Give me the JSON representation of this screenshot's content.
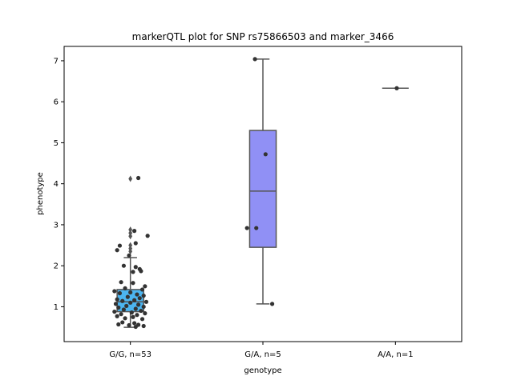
{
  "chart_data": {
    "type": "box",
    "title": "markerQTL plot for SNP rs75866503 and marker_3466",
    "xlabel": "genotype",
    "ylabel": "phenotype",
    "ylim": [
      0.15,
      7.35
    ],
    "yticks": [
      1,
      2,
      3,
      4,
      5,
      6,
      7
    ],
    "grid": false,
    "categories": [
      "G/G, n=53",
      "G/A, n=5",
      "A/A, n=1"
    ],
    "colors": [
      "#4cb5f0",
      "#9090f5",
      "#f08080"
    ],
    "box_edge_color": "#555555",
    "point_color": "#333333",
    "boxes": [
      {
        "category": "G/G, n=53",
        "q1": 0.88,
        "median": 1.12,
        "q3": 1.42,
        "whisker_low": 0.5,
        "whisker_high": 2.2,
        "fliers": [
          2.35,
          2.42,
          2.5,
          2.72,
          2.8,
          2.88,
          4.12
        ]
      },
      {
        "category": "G/A, n=5",
        "q1": 2.45,
        "median": 3.82,
        "q3": 5.3,
        "whisker_low": 1.07,
        "whisker_high": 7.04,
        "fliers": []
      },
      {
        "category": "A/A, n=1",
        "q1": 6.33,
        "median": 6.33,
        "q3": 6.33,
        "whisker_low": 6.33,
        "whisker_high": 6.33,
        "fliers": []
      }
    ],
    "points": [
      {
        "category": "G/G, n=53",
        "values": [
          [
            0.06,
            4.14
          ],
          [
            0.03,
            2.85
          ],
          [
            0.04,
            2.55
          ],
          [
            0.13,
            2.73
          ],
          [
            -0.08,
            2.49
          ],
          [
            -0.1,
            2.38
          ],
          [
            -0.01,
            2.25
          ],
          [
            -0.05,
            2.0
          ],
          [
            0.04,
            1.97
          ],
          [
            0.07,
            1.92
          ],
          [
            0.02,
            1.85
          ],
          [
            0.08,
            1.87
          ],
          [
            -0.07,
            1.6
          ],
          [
            0.02,
            1.58
          ],
          [
            0.11,
            1.5
          ],
          [
            -0.04,
            1.45
          ],
          [
            0.09,
            1.42
          ],
          [
            -0.12,
            1.38
          ],
          [
            0.0,
            1.35
          ],
          [
            -0.08,
            1.33
          ],
          [
            0.05,
            1.3
          ],
          [
            0.1,
            1.27
          ],
          [
            -0.02,
            1.24
          ],
          [
            0.07,
            1.21
          ],
          [
            -0.1,
            1.18
          ],
          [
            0.03,
            1.16
          ],
          [
            -0.06,
            1.14
          ],
          [
            0.12,
            1.12
          ],
          [
            0.0,
            1.1
          ],
          [
            -0.11,
            1.07
          ],
          [
            0.06,
            1.05
          ],
          [
            -0.03,
            1.02
          ],
          [
            0.1,
            1.0
          ],
          [
            -0.09,
            0.98
          ],
          [
            0.04,
            0.95
          ],
          [
            -0.05,
            0.93
          ],
          [
            0.08,
            0.9
          ],
          [
            -0.12,
            0.88
          ],
          [
            0.01,
            0.86
          ],
          [
            0.11,
            0.84
          ],
          [
            -0.07,
            0.82
          ],
          [
            0.05,
            0.8
          ],
          [
            -0.1,
            0.77
          ],
          [
            0.02,
            0.75
          ],
          [
            -0.04,
            0.72
          ],
          [
            0.09,
            0.7
          ],
          [
            -0.06,
            0.62
          ],
          [
            0.03,
            0.6
          ],
          [
            -0.09,
            0.57
          ],
          [
            0.06,
            0.56
          ],
          [
            -0.01,
            0.55
          ],
          [
            0.1,
            0.53
          ],
          [
            0.04,
            0.51
          ]
        ]
      },
      {
        "category": "G/A, n=5",
        "values": [
          [
            -0.06,
            7.04
          ],
          [
            0.02,
            4.72
          ],
          [
            -0.05,
            2.92
          ],
          [
            -0.12,
            2.92
          ],
          [
            0.07,
            1.07
          ]
        ]
      },
      {
        "category": "A/A, n=1",
        "values": [
          [
            0.01,
            6.33
          ]
        ]
      }
    ]
  }
}
